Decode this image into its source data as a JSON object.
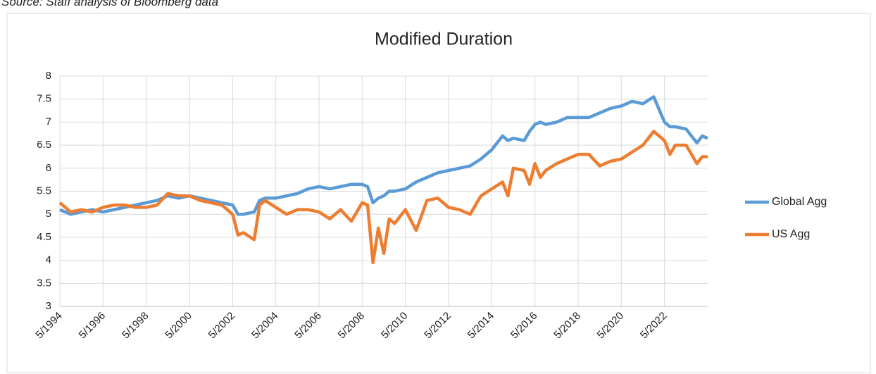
{
  "source": "Source: Staff analysis of Bloomberg data",
  "chart_data": {
    "type": "line",
    "title": "Modified Duration",
    "x": [
      "5/1994",
      "11/1994",
      "5/1995",
      "11/1995",
      "5/1996",
      "11/1996",
      "5/1997",
      "11/1997",
      "5/1998",
      "11/1998",
      "5/1999",
      "11/1999",
      "5/2000",
      "11/2000",
      "5/2001",
      "11/2001",
      "5/2002",
      "8/2002",
      "11/2002",
      "5/2003",
      "8/2003",
      "11/2003",
      "5/2004",
      "11/2004",
      "5/2005",
      "11/2005",
      "5/2006",
      "11/2006",
      "5/2007",
      "11/2007",
      "5/2008",
      "8/2008",
      "11/2008",
      "2/2009",
      "5/2009",
      "8/2009",
      "11/2009",
      "5/2010",
      "11/2010",
      "5/2011",
      "11/2011",
      "5/2012",
      "11/2012",
      "5/2013",
      "11/2013",
      "5/2014",
      "11/2014",
      "2/2015",
      "5/2015",
      "11/2015",
      "2/2016",
      "5/2016",
      "8/2016",
      "11/2016",
      "5/2017",
      "11/2017",
      "5/2018",
      "11/2018",
      "5/2019",
      "11/2019",
      "5/2020",
      "11/2020",
      "5/2021",
      "11/2021",
      "5/2022",
      "8/2022",
      "11/2022",
      "5/2023",
      "11/2023",
      "2/2024",
      "5/2024"
    ],
    "series": [
      {
        "name": "Global Agg",
        "color": "#5b9bd5",
        "values": [
          5.1,
          5.0,
          5.05,
          5.1,
          5.05,
          5.1,
          5.15,
          5.2,
          5.25,
          5.3,
          5.4,
          5.35,
          5.4,
          5.35,
          5.3,
          5.25,
          5.2,
          5.0,
          5.0,
          5.05,
          5.3,
          5.35,
          5.35,
          5.4,
          5.45,
          5.55,
          5.6,
          5.55,
          5.6,
          5.65,
          5.65,
          5.6,
          5.25,
          5.35,
          5.4,
          5.5,
          5.5,
          5.55,
          5.7,
          5.8,
          5.9,
          5.95,
          6.0,
          6.05,
          6.2,
          6.4,
          6.7,
          6.6,
          6.65,
          6.6,
          6.8,
          6.95,
          7.0,
          6.95,
          7.0,
          7.1,
          7.1,
          7.1,
          7.2,
          7.3,
          7.35,
          7.45,
          7.4,
          7.55,
          7.0,
          6.9,
          6.9,
          6.85,
          6.55,
          6.7,
          6.65
        ]
      },
      {
        "name": "US Agg",
        "color": "#ed7d31",
        "values": [
          5.25,
          5.05,
          5.1,
          5.05,
          5.15,
          5.2,
          5.2,
          5.15,
          5.15,
          5.2,
          5.45,
          5.4,
          5.4,
          5.3,
          5.25,
          5.2,
          5.0,
          4.55,
          4.6,
          4.45,
          5.2,
          5.3,
          5.15,
          5.0,
          5.1,
          5.1,
          5.05,
          4.9,
          5.1,
          4.85,
          5.25,
          5.2,
          3.95,
          4.7,
          4.15,
          4.9,
          4.8,
          5.1,
          4.65,
          5.3,
          5.35,
          5.15,
          5.1,
          5.0,
          5.4,
          5.55,
          5.7,
          5.4,
          6.0,
          5.95,
          5.65,
          6.1,
          5.8,
          5.95,
          6.1,
          6.2,
          6.3,
          6.3,
          6.05,
          6.15,
          6.2,
          6.35,
          6.5,
          6.8,
          6.6,
          6.3,
          6.5,
          6.5,
          6.1,
          6.25,
          6.25
        ]
      }
    ],
    "xlim": [
      "5/1994",
      "5/2024"
    ],
    "xticks": [
      "5/1994",
      "5/1996",
      "5/1998",
      "5/2000",
      "5/2002",
      "5/2004",
      "5/2006",
      "5/2008",
      "5/2010",
      "5/2012",
      "5/2014",
      "5/2016",
      "5/2018",
      "5/2020",
      "5/2022"
    ],
    "ylim": [
      3,
      8
    ],
    "yticks": [
      3,
      3.5,
      4,
      4.5,
      5,
      5.5,
      6,
      6.5,
      7,
      7.5,
      8
    ],
    "grid": true,
    "legend": "right"
  }
}
